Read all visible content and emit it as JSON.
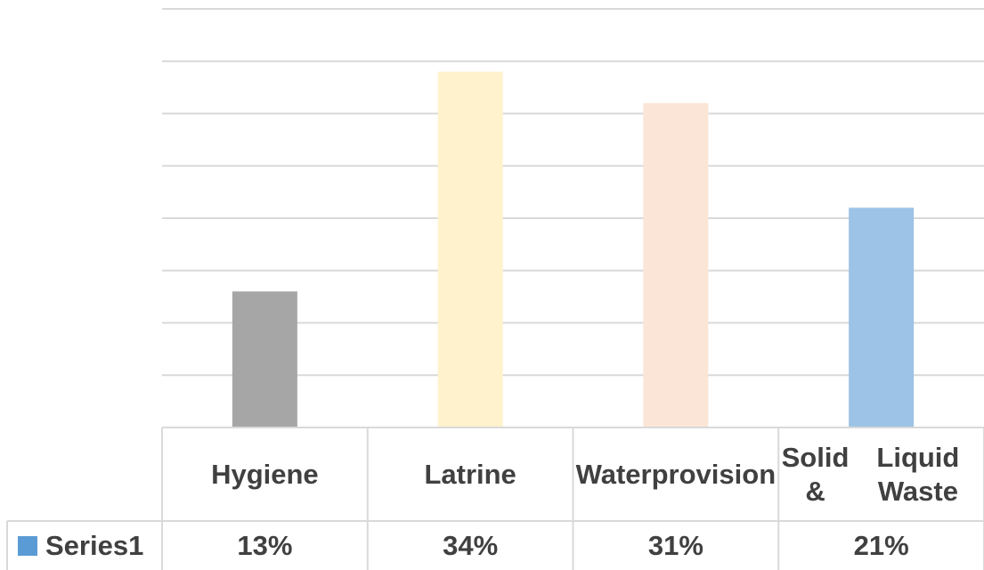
{
  "chart_data": {
    "type": "bar",
    "categories": [
      "Hygiene",
      "Latrine",
      "Water provision",
      "Solid & Liquid Waste"
    ],
    "category_lines": [
      [
        "Hygiene"
      ],
      [
        "Latrine"
      ],
      [
        "Water",
        "provision"
      ],
      [
        "Solid &",
        "Liquid Waste"
      ]
    ],
    "series": [
      {
        "name": "Series1",
        "values": [
          13,
          34,
          31,
          21
        ],
        "value_labels": [
          "13%",
          "34%",
          "31%",
          "21%"
        ],
        "bar_colors": [
          "#a6a6a6",
          "#fff2cc",
          "#fbe5d6",
          "#9dc3e6"
        ],
        "legend_color": "#5b9bd5"
      }
    ],
    "ylim": [
      0,
      40
    ],
    "grid": true,
    "legend": "data-table"
  }
}
